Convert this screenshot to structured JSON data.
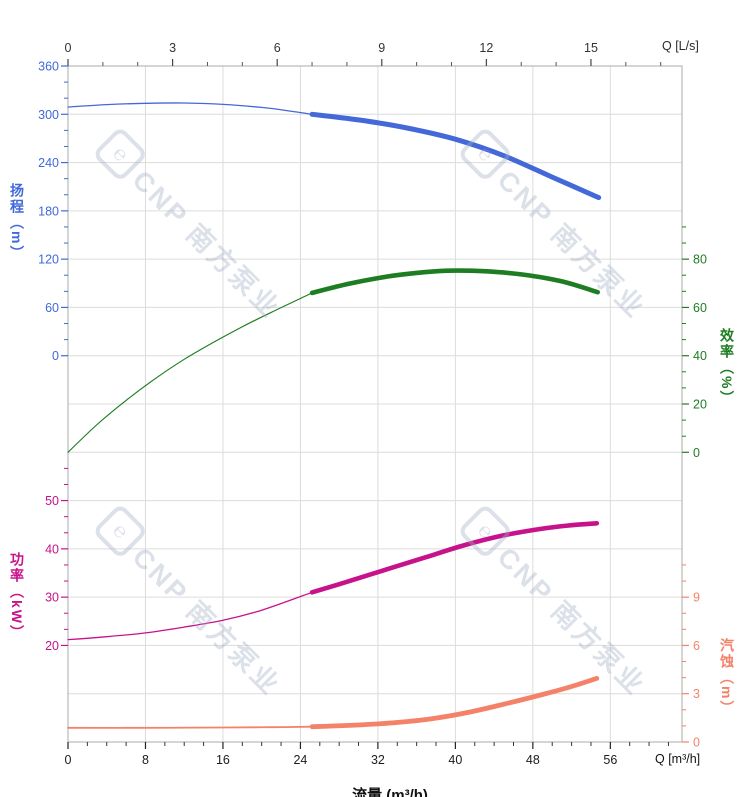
{
  "page": {
    "background": "#ffffff"
  },
  "watermark": {
    "logo_glyph": "℮",
    "text": "CNP 南方泵业"
  },
  "colors": {
    "grid": "#dcdcdc",
    "plot_border": "#ababab",
    "top_tick_label": "#333333",
    "bottom_tick_label": "#1c1c1c",
    "head_blue": "#4468d8",
    "efficiency_green": "#1e7d22",
    "power_magenta": "#c6138b",
    "npsh_salmon": "#f48268"
  },
  "chart_data": {
    "type": "line",
    "title": "",
    "description": "Pump performance curves: head, efficiency, power and NPSH versus flow; thick segments mark the recommended operating range",
    "operating_range_m3h": [
      25.2,
      54.8
    ],
    "x_axis_bottom": {
      "label": "Q [m³/h]",
      "axis_title": "流量 (m³/h)",
      "min": 0,
      "max": 63.4,
      "major_ticks": [
        0,
        8,
        16,
        24,
        32,
        40,
        48,
        56
      ],
      "minor_step": 2,
      "minor_max": 62
    },
    "x_axis_top": {
      "label": "Q [L/s]",
      "min": 0,
      "max": 17.6,
      "major_ticks": [
        0,
        3,
        6,
        9,
        12,
        15
      ],
      "minor_step": 1,
      "minor_max": 17,
      "m3h_per_unit": 3.6
    },
    "y_axes": [
      {
        "id": "head",
        "title": "扬程（m）",
        "color": "#4169d9",
        "min": 0,
        "max": 360,
        "major_ticks": [
          360,
          300,
          240,
          180,
          120,
          60,
          0
        ],
        "minor_step": 20,
        "minor_overshoot": 0,
        "side": "left"
      },
      {
        "id": "eff",
        "title": "效率（%）",
        "color": "#1e7d22",
        "min": 0,
        "max": 80,
        "major_ticks": [
          80,
          60,
          40,
          20,
          0
        ],
        "minor_step": 6.667,
        "minor_overshoot": 2,
        "side": "right"
      },
      {
        "id": "power",
        "title": "功率（kW）",
        "color": "#c6138b",
        "min": 20,
        "max": 50,
        "major_ticks": [
          50,
          40,
          30,
          20
        ],
        "minor_step": 3.333,
        "minor_overshoot": 2,
        "side": "left"
      },
      {
        "id": "npsh",
        "title": "汽蚀（m）",
        "color": "#f48268",
        "min": 0,
        "max": 9,
        "major_ticks": [
          9,
          6,
          3,
          0
        ],
        "minor_step": 1,
        "minor_overshoot": 2,
        "side": "right"
      }
    ],
    "series": [
      {
        "name": "head",
        "axis": "head",
        "color": "#4468d8",
        "thin": [
          [
            0,
            309
          ],
          [
            4,
            312
          ],
          [
            8,
            313.6
          ],
          [
            12,
            314
          ],
          [
            16,
            312.3
          ],
          [
            20,
            308.5
          ],
          [
            22.6,
            304.6
          ],
          [
            25.2,
            300
          ]
        ],
        "thick": [
          [
            25.2,
            300
          ],
          [
            30,
            293
          ],
          [
            35,
            283
          ],
          [
            40,
            269
          ],
          [
            45,
            248.5
          ],
          [
            50,
            222
          ],
          [
            54.8,
            196.5
          ]
        ]
      },
      {
        "name": "efficiency",
        "axis": "eff",
        "color": "#1e7d22",
        "thin": [
          [
            0,
            0
          ],
          [
            3,
            11.5
          ],
          [
            6,
            21.5
          ],
          [
            9,
            30.5
          ],
          [
            12,
            38.5
          ],
          [
            15,
            45.5
          ],
          [
            18,
            52
          ],
          [
            21,
            58
          ],
          [
            25.2,
            66
          ]
        ],
        "thick": [
          [
            25.2,
            66
          ],
          [
            29,
            69.8
          ],
          [
            33,
            72.8
          ],
          [
            36,
            74.3
          ],
          [
            39.2,
            75.2
          ],
          [
            43,
            75
          ],
          [
            47,
            73.6
          ],
          [
            51,
            70.8
          ],
          [
            54.7,
            66.3
          ]
        ]
      },
      {
        "name": "power",
        "axis": "power",
        "color": "#c6138b",
        "thin": [
          [
            0,
            21.2
          ],
          [
            4,
            21.8
          ],
          [
            8,
            22.6
          ],
          [
            12,
            23.8
          ],
          [
            16,
            25.2
          ],
          [
            20,
            27.3
          ],
          [
            25.2,
            31
          ]
        ],
        "thick": [
          [
            25.2,
            31
          ],
          [
            29,
            33.3
          ],
          [
            33,
            35.8
          ],
          [
            37,
            38.3
          ],
          [
            41,
            40.8
          ],
          [
            45,
            42.8
          ],
          [
            49,
            44.2
          ],
          [
            52,
            44.9
          ],
          [
            54.6,
            45.3
          ]
        ]
      },
      {
        "name": "npsh",
        "axis": "npsh",
        "color": "#f48268",
        "thin": [
          [
            0,
            0.88
          ],
          [
            8,
            0.88
          ],
          [
            16,
            0.9
          ],
          [
            21,
            0.92
          ],
          [
            25.2,
            0.95
          ]
        ],
        "thick": [
          [
            25.2,
            0.95
          ],
          [
            29,
            1.03
          ],
          [
            33,
            1.17
          ],
          [
            37,
            1.4
          ],
          [
            41,
            1.8
          ],
          [
            45,
            2.35
          ],
          [
            49,
            2.95
          ],
          [
            52,
            3.45
          ],
          [
            54.6,
            3.95
          ]
        ]
      }
    ]
  }
}
